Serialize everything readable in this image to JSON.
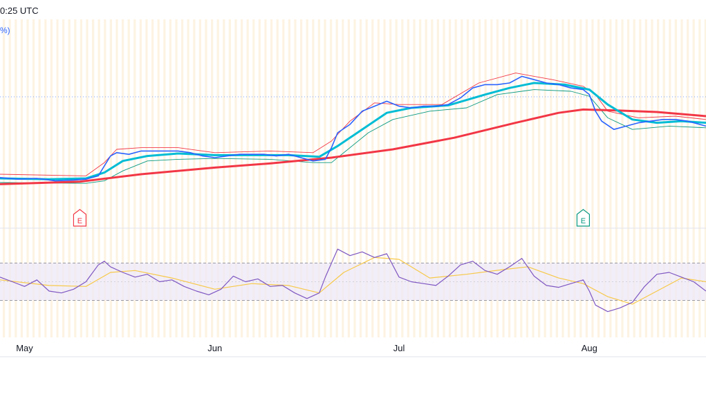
{
  "header": {
    "time_text": "0:25 UTC",
    "pct_text": "%)"
  },
  "colors": {
    "price": "#2962ff",
    "ema": "#00bcd4",
    "ma_long": "#f23645",
    "bb_upper": "#f23645",
    "bb_lower": "#089981",
    "rsi": "#7e57c2",
    "rsi_ma": "#f7c948",
    "rsi_band": "#ede7f6",
    "earnings_red": "#f23645",
    "earnings_green": "#089981"
  },
  "earnings": [
    {
      "label": "E",
      "date": "2024-05-10",
      "color": "red"
    },
    {
      "label": "E",
      "date": "2024-07-31",
      "color": "green"
    }
  ],
  "chart_data": {
    "type": "line",
    "x_tick_labels": [
      {
        "label": "May",
        "date": "2024-05-01"
      },
      {
        "label": "Jun",
        "date": "2024-06-01"
      },
      {
        "label": "Jul",
        "date": "2024-07-01"
      },
      {
        "label": "Aug",
        "date": "2024-08-01"
      }
    ],
    "xlim": [
      "2024-04-27",
      "2024-08-20"
    ],
    "price_panel": {
      "ylim": [
        0,
        100
      ],
      "series": [
        {
          "key": "price",
          "points": [
            [
              "2024-04-27",
              18
            ],
            [
              "2024-04-30",
              17
            ],
            [
              "2024-05-03",
              17.5
            ],
            [
              "2024-05-06",
              16
            ],
            [
              "2024-05-09",
              16.5
            ],
            [
              "2024-05-11",
              17
            ],
            [
              "2024-05-13",
              19
            ],
            [
              "2024-05-14",
              25
            ],
            [
              "2024-05-15",
              31
            ],
            [
              "2024-05-16",
              33
            ],
            [
              "2024-05-18",
              32
            ],
            [
              "2024-05-20",
              34
            ],
            [
              "2024-05-23",
              34
            ],
            [
              "2024-05-26",
              34
            ],
            [
              "2024-05-28",
              33
            ],
            [
              "2024-05-30",
              31
            ],
            [
              "2024-06-01",
              30
            ],
            [
              "2024-06-03",
              31
            ],
            [
              "2024-06-05",
              32
            ],
            [
              "2024-06-07",
              32
            ],
            [
              "2024-06-09",
              32
            ],
            [
              "2024-06-11",
              31
            ],
            [
              "2024-06-13",
              32
            ],
            [
              "2024-06-15",
              30
            ],
            [
              "2024-06-17",
              28
            ],
            [
              "2024-06-19",
              29
            ],
            [
              "2024-06-20",
              36
            ],
            [
              "2024-06-21",
              45
            ],
            [
              "2024-06-23",
              50
            ],
            [
              "2024-06-25",
              58
            ],
            [
              "2024-06-27",
              61
            ],
            [
              "2024-06-29",
              64
            ],
            [
              "2024-07-01",
              61
            ],
            [
              "2024-07-03",
              60
            ],
            [
              "2024-07-05",
              61
            ],
            [
              "2024-07-07",
              61
            ],
            [
              "2024-07-09",
              62
            ],
            [
              "2024-07-11",
              66
            ],
            [
              "2024-07-13",
              72
            ],
            [
              "2024-07-15",
              74
            ],
            [
              "2024-07-17",
              74
            ],
            [
              "2024-07-19",
              75
            ],
            [
              "2024-07-21",
              79
            ],
            [
              "2024-07-23",
              77
            ],
            [
              "2024-07-25",
              75
            ],
            [
              "2024-07-27",
              74
            ],
            [
              "2024-07-29",
              72
            ],
            [
              "2024-07-31",
              71
            ],
            [
              "2024-08-01",
              68
            ],
            [
              "2024-08-02",
              58
            ],
            [
              "2024-08-03",
              52
            ],
            [
              "2024-08-05",
              47
            ],
            [
              "2024-08-07",
              49
            ],
            [
              "2024-08-09",
              51
            ],
            [
              "2024-08-11",
              52
            ],
            [
              "2024-08-13",
              53
            ],
            [
              "2024-08-15",
              53
            ],
            [
              "2024-08-17",
              52
            ],
            [
              "2024-08-19",
              50
            ],
            [
              "2024-08-20",
              49
            ]
          ]
        },
        {
          "key": "ema",
          "points": [
            [
              "2024-04-27",
              17.5
            ],
            [
              "2024-05-05",
              17
            ],
            [
              "2024-05-11",
              17.5
            ],
            [
              "2024-05-14",
              21
            ],
            [
              "2024-05-17",
              28
            ],
            [
              "2024-05-21",
              31
            ],
            [
              "2024-05-26",
              32.5
            ],
            [
              "2024-06-01",
              31.5
            ],
            [
              "2024-06-07",
              31.5
            ],
            [
              "2024-06-13",
              31.5
            ],
            [
              "2024-06-18",
              30.5
            ],
            [
              "2024-06-21",
              37
            ],
            [
              "2024-06-25",
              47
            ],
            [
              "2024-06-29",
              57
            ],
            [
              "2024-07-03",
              60
            ],
            [
              "2024-07-09",
              61.5
            ],
            [
              "2024-07-15",
              68
            ],
            [
              "2024-07-19",
              72
            ],
            [
              "2024-07-23",
              75
            ],
            [
              "2024-07-28",
              74
            ],
            [
              "2024-08-01",
              71
            ],
            [
              "2024-08-04",
              62
            ],
            [
              "2024-08-08",
              53
            ],
            [
              "2024-08-12",
              51
            ],
            [
              "2024-08-16",
              52
            ],
            [
              "2024-08-20",
              51
            ]
          ]
        },
        {
          "key": "ma_long",
          "points": [
            [
              "2024-04-27",
              14
            ],
            [
              "2024-05-10",
              15.5
            ],
            [
              "2024-05-20",
              20
            ],
            [
              "2024-06-01",
              24
            ],
            [
              "2024-06-10",
              26.5
            ],
            [
              "2024-06-20",
              30
            ],
            [
              "2024-06-30",
              35
            ],
            [
              "2024-07-10",
              42
            ],
            [
              "2024-07-20",
              51
            ],
            [
              "2024-07-27",
              57
            ],
            [
              "2024-07-31",
              59
            ],
            [
              "2024-08-05",
              58.5
            ],
            [
              "2024-08-12",
              57.5
            ],
            [
              "2024-08-20",
              55
            ]
          ]
        },
        {
          "key": "bb_upper",
          "points": [
            [
              "2024-04-27",
              20
            ],
            [
              "2024-05-11",
              19
            ],
            [
              "2024-05-14",
              27
            ],
            [
              "2024-05-16",
              35
            ],
            [
              "2024-05-20",
              36
            ],
            [
              "2024-05-26",
              36
            ],
            [
              "2024-06-01",
              33
            ],
            [
              "2024-06-10",
              34
            ],
            [
              "2024-06-17",
              33
            ],
            [
              "2024-06-20",
              40
            ],
            [
              "2024-06-23",
              52
            ],
            [
              "2024-06-27",
              63
            ],
            [
              "2024-07-01",
              62
            ],
            [
              "2024-07-08",
              62
            ],
            [
              "2024-07-14",
              75
            ],
            [
              "2024-07-20",
              81
            ],
            [
              "2024-07-26",
              77
            ],
            [
              "2024-07-31",
              73
            ],
            [
              "2024-08-02",
              68
            ],
            [
              "2024-08-04",
              58
            ],
            [
              "2024-08-09",
              54
            ],
            [
              "2024-08-15",
              55
            ],
            [
              "2024-08-20",
              53
            ]
          ]
        },
        {
          "key": "bb_lower",
          "points": [
            [
              "2024-04-27",
              15
            ],
            [
              "2024-05-11",
              14.5
            ],
            [
              "2024-05-14",
              16
            ],
            [
              "2024-05-17",
              22
            ],
            [
              "2024-05-21",
              28
            ],
            [
              "2024-05-26",
              29
            ],
            [
              "2024-06-01",
              29.5
            ],
            [
              "2024-06-10",
              29
            ],
            [
              "2024-06-17",
              27
            ],
            [
              "2024-06-20",
              27
            ],
            [
              "2024-06-23",
              36
            ],
            [
              "2024-06-26",
              45
            ],
            [
              "2024-06-30",
              53
            ],
            [
              "2024-07-06",
              58
            ],
            [
              "2024-07-12",
              60
            ],
            [
              "2024-07-17",
              68
            ],
            [
              "2024-07-23",
              71
            ],
            [
              "2024-07-29",
              70
            ],
            [
              "2024-08-01",
              67
            ],
            [
              "2024-08-04",
              54
            ],
            [
              "2024-08-08",
              47
            ],
            [
              "2024-08-14",
              49
            ],
            [
              "2024-08-20",
              48
            ]
          ]
        }
      ]
    },
    "rsi_panel": {
      "ylim": [
        0,
        100
      ],
      "band": [
        30,
        70
      ],
      "midline": 50,
      "series": [
        {
          "key": "rsi",
          "points": [
            [
              "2024-04-27",
              55
            ],
            [
              "2024-04-29",
              50
            ],
            [
              "2024-05-01",
              45
            ],
            [
              "2024-05-03",
              52
            ],
            [
              "2024-05-05",
              40
            ],
            [
              "2024-05-07",
              38
            ],
            [
              "2024-05-09",
              42
            ],
            [
              "2024-05-11",
              50
            ],
            [
              "2024-05-13",
              68
            ],
            [
              "2024-05-14",
              72
            ],
            [
              "2024-05-15",
              66
            ],
            [
              "2024-05-17",
              60
            ],
            [
              "2024-05-19",
              55
            ],
            [
              "2024-05-21",
              58
            ],
            [
              "2024-05-23",
              50
            ],
            [
              "2024-05-25",
              52
            ],
            [
              "2024-05-27",
              45
            ],
            [
              "2024-05-29",
              40
            ],
            [
              "2024-05-31",
              36
            ],
            [
              "2024-06-02",
              42
            ],
            [
              "2024-06-04",
              56
            ],
            [
              "2024-06-06",
              50
            ],
            [
              "2024-06-08",
              53
            ],
            [
              "2024-06-10",
              45
            ],
            [
              "2024-06-12",
              46
            ],
            [
              "2024-06-14",
              38
            ],
            [
              "2024-06-16",
              32
            ],
            [
              "2024-06-18",
              38
            ],
            [
              "2024-06-19",
              55
            ],
            [
              "2024-06-20",
              70
            ],
            [
              "2024-06-21",
              85
            ],
            [
              "2024-06-23",
              78
            ],
            [
              "2024-06-25",
              82
            ],
            [
              "2024-06-27",
              76
            ],
            [
              "2024-06-29",
              80
            ],
            [
              "2024-07-01",
              55
            ],
            [
              "2024-07-03",
              50
            ],
            [
              "2024-07-05",
              48
            ],
            [
              "2024-07-07",
              46
            ],
            [
              "2024-07-09",
              56
            ],
            [
              "2024-07-11",
              68
            ],
            [
              "2024-07-13",
              72
            ],
            [
              "2024-07-15",
              62
            ],
            [
              "2024-07-17",
              58
            ],
            [
              "2024-07-19",
              66
            ],
            [
              "2024-07-21",
              75
            ],
            [
              "2024-07-23",
              56
            ],
            [
              "2024-07-25",
              46
            ],
            [
              "2024-07-27",
              44
            ],
            [
              "2024-07-29",
              48
            ],
            [
              "2024-07-31",
              52
            ],
            [
              "2024-08-01",
              40
            ],
            [
              "2024-08-02",
              25
            ],
            [
              "2024-08-04",
              18
            ],
            [
              "2024-08-06",
              22
            ],
            [
              "2024-08-08",
              28
            ],
            [
              "2024-08-10",
              45
            ],
            [
              "2024-08-12",
              58
            ],
            [
              "2024-08-14",
              60
            ],
            [
              "2024-08-16",
              55
            ],
            [
              "2024-08-18",
              50
            ],
            [
              "2024-08-20",
              40
            ]
          ]
        },
        {
          "key": "rsi_ma",
          "points": [
            [
              "2024-04-27",
              52
            ],
            [
              "2024-05-05",
              46
            ],
            [
              "2024-05-11",
              45
            ],
            [
              "2024-05-15",
              60
            ],
            [
              "2024-05-19",
              62
            ],
            [
              "2024-05-25",
              54
            ],
            [
              "2024-06-01",
              42
            ],
            [
              "2024-06-07",
              48
            ],
            [
              "2024-06-13",
              46
            ],
            [
              "2024-06-18",
              38
            ],
            [
              "2024-06-22",
              60
            ],
            [
              "2024-06-27",
              76
            ],
            [
              "2024-07-01",
              74
            ],
            [
              "2024-07-06",
              54
            ],
            [
              "2024-07-12",
              58
            ],
            [
              "2024-07-18",
              63
            ],
            [
              "2024-07-22",
              66
            ],
            [
              "2024-07-27",
              54
            ],
            [
              "2024-07-31",
              48
            ],
            [
              "2024-08-04",
              34
            ],
            [
              "2024-08-08",
              26
            ],
            [
              "2024-08-12",
              40
            ],
            [
              "2024-08-16",
              54
            ],
            [
              "2024-08-20",
              50
            ]
          ]
        }
      ]
    }
  }
}
